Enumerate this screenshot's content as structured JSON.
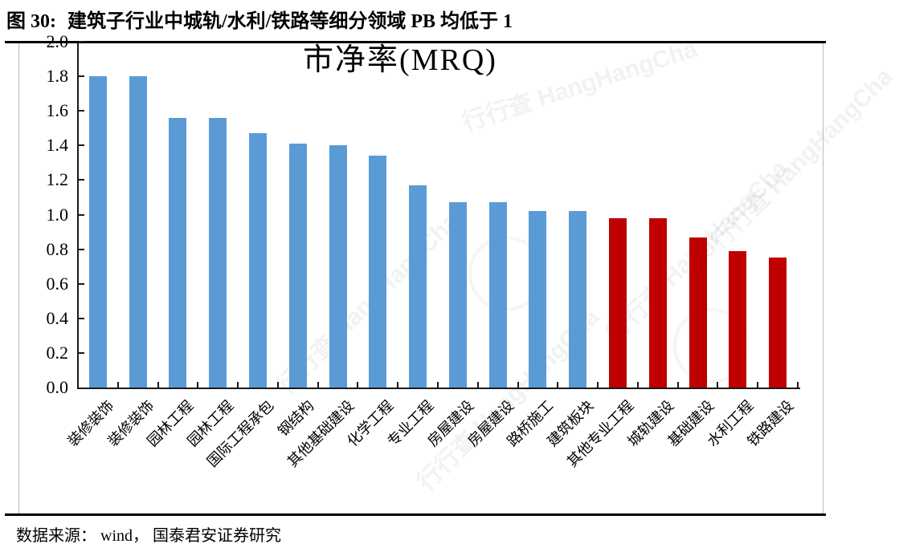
{
  "page": {
    "figure_label": "图 30:",
    "figure_title": "建筑子行业中城轨/水利/铁路等细分领域 PB 均低于 1",
    "source_text": "数据来源： wind， 国泰君安证券研究",
    "watermark_text": "行行查",
    "watermark_subtext": "HangHangCha"
  },
  "chart_data": {
    "type": "bar",
    "title": "市净率(MRQ)",
    "categories": [
      "装修装饰",
      "装修装饰",
      "园林工程",
      "园林工程",
      "国际工程承包",
      "钢结构",
      "其他基础建设",
      "化学工程",
      "专业工程",
      "房屋建设",
      "房屋建设",
      "路桥施工",
      "建筑板块",
      "其他专业工程",
      "城轨建设",
      "基础建设",
      "水利工程",
      "铁路建设"
    ],
    "values": [
      1.8,
      1.8,
      1.56,
      1.56,
      1.47,
      1.41,
      1.4,
      1.34,
      1.17,
      1.07,
      1.07,
      1.02,
      1.02,
      0.98,
      0.98,
      0.87,
      0.79,
      0.75
    ],
    "bar_color_group": [
      "blue",
      "blue",
      "blue",
      "blue",
      "blue",
      "blue",
      "blue",
      "blue",
      "blue",
      "blue",
      "blue",
      "blue",
      "blue",
      "red",
      "red",
      "red",
      "red",
      "red"
    ],
    "bar_colors": {
      "blue": "#5B9BD5",
      "red": "#C00000"
    },
    "xlabel": "",
    "ylabel": "",
    "ylim": [
      0,
      2.0
    ],
    "yticks": [
      0.0,
      0.2,
      0.4,
      0.6,
      0.8,
      1.0,
      1.2,
      1.4,
      1.6,
      1.8,
      2.0
    ],
    "ytick_labels": [
      "0.0",
      "0.2",
      "0.4",
      "0.6",
      "0.8",
      "1.0",
      "1.2",
      "1.4",
      "1.6",
      "1.8",
      "2.0"
    ],
    "grid": false,
    "legend_position": "none",
    "x_tick_rotation": 45
  }
}
